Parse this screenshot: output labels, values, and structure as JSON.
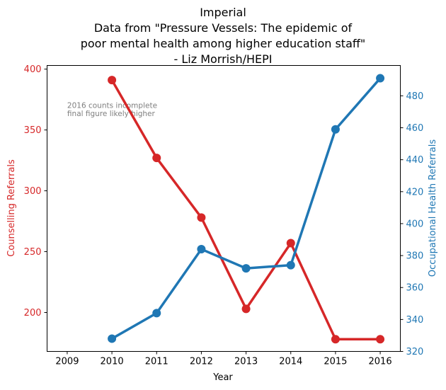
{
  "chart_data": {
    "type": "line",
    "title_lines": [
      "Imperial",
      "Data from \"Pressure Vessels: The epidemic of",
      "poor mental health among higher education staff\"",
      "- Liz Morrish/HEPI"
    ],
    "xlabel": "Year",
    "ylabel_left": "Counselling Referrals",
    "ylabel_right": "Occupational Health Referrals",
    "x_ticks": [
      "2009",
      "2010",
      "2011",
      "2012",
      "2013",
      "2014",
      "2015",
      "2016"
    ],
    "x_range": [
      2008.55,
      2016.45
    ],
    "left_axis": {
      "range": [
        168,
        403
      ],
      "ticks": [
        "200",
        "250",
        "300",
        "350",
        "400"
      ],
      "color": "#d62728"
    },
    "right_axis": {
      "range": [
        320,
        499
      ],
      "ticks": [
        "320",
        "340",
        "360",
        "380",
        "400",
        "420",
        "440",
        "460",
        "480"
      ],
      "color": "#1f77b4"
    },
    "series": [
      {
        "axis": "left",
        "color": "#d62728",
        "x": [
          2010,
          2011,
          2012,
          2013,
          2014,
          2015,
          2016
        ],
        "values": [
          391,
          327,
          278,
          203,
          257,
          178,
          178
        ]
      },
      {
        "axis": "right",
        "color": "#1f77b4",
        "x": [
          2010,
          2011,
          2012,
          2013,
          2014,
          2015,
          2016
        ],
        "values": [
          328,
          344,
          384,
          372,
          374,
          459,
          491
        ]
      }
    ],
    "annotation": {
      "lines": [
        "2016 counts incomplete",
        "final figure likely higher"
      ],
      "x": 2009,
      "y": 368
    },
    "grid": false
  }
}
